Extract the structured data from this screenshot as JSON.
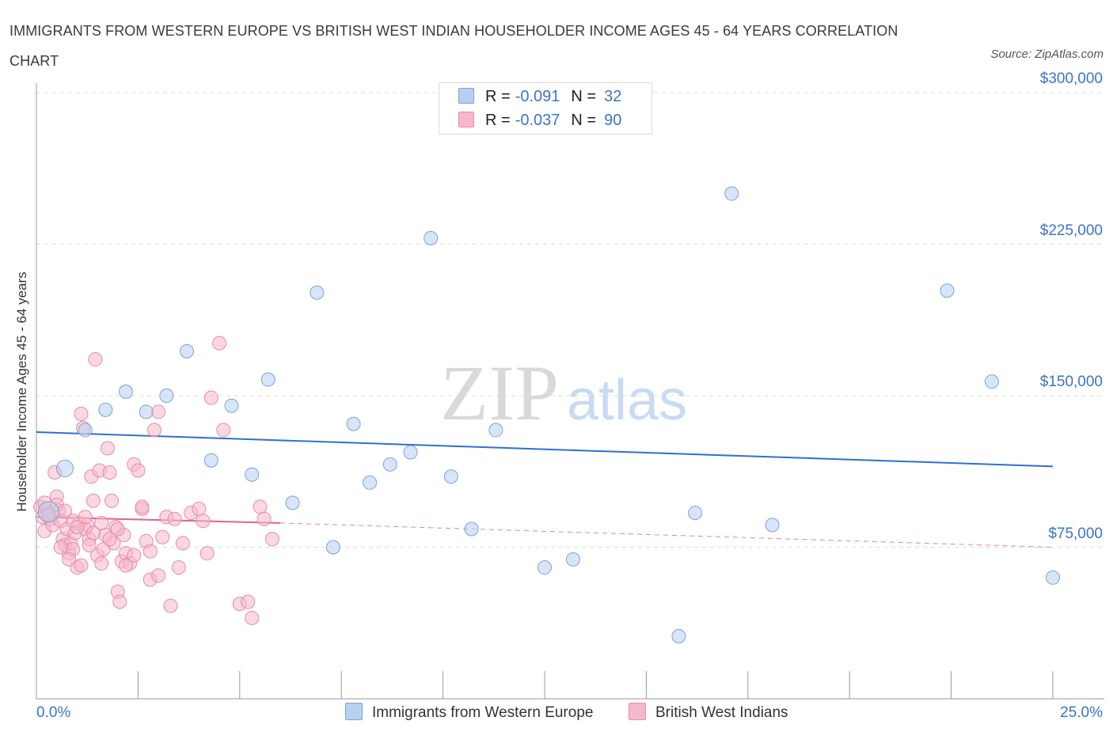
{
  "header": {
    "title": "IMMIGRANTS FROM WESTERN EUROPE VS BRITISH WEST INDIAN HOUSEHOLDER INCOME AGES 45 - 64 YEARS CORRELATION CHART",
    "source": "Source: ZipAtlas.com"
  },
  "legend": {
    "rows": [
      {
        "r_label": "R =",
        "r_value": "-0.091",
        "n_label": "N =",
        "n_value": "32"
      },
      {
        "r_label": "R =",
        "r_value": "-0.037",
        "n_label": "N =",
        "n_value": "90"
      }
    ]
  },
  "watermark": {
    "zip": "ZIP",
    "atlas": "atlas"
  },
  "colors": {
    "blue_fill": "#b8d0f0",
    "blue_edge": "#7aa3da",
    "blue_line": "#2f6fd0",
    "pink_fill": "#f6b8cb",
    "pink_edge": "#e98aa9",
    "pink_line": "#e0609a",
    "tick_text": "#3b74c8",
    "grid": "#dddddd"
  },
  "chart_data": {
    "type": "scatter",
    "title": "IMMIGRANTS FROM WESTERN EUROPE VS BRITISH WEST INDIAN HOUSEHOLDER INCOME AGES 45 - 64 YEARS CORRELATION CHART",
    "ylabel": "Householder Income Ages 45 - 64 years",
    "xlabel": "",
    "xlim": [
      0,
      25
    ],
    "ylim": [
      0,
      300000
    ],
    "x_tick_labels": [
      "0.0%",
      "25.0%"
    ],
    "y_ticks": [
      {
        "value": 75000,
        "label": "$75,000"
      },
      {
        "value": 150000,
        "label": "$150,000"
      },
      {
        "value": 225000,
        "label": "$225,000"
      },
      {
        "value": 300000,
        "label": "$300,000"
      }
    ],
    "grid": "horizontal dashed",
    "legend_position": "top-center and bottom",
    "series": [
      {
        "name": "Immigrants from Western Europe",
        "color": "blue",
        "r": -0.091,
        "n": 32,
        "trend": {
          "x": [
            0,
            25
          ],
          "y": [
            132000,
            115000
          ],
          "style": "solid"
        },
        "points": [
          [
            0.3,
            92500
          ],
          [
            0.7,
            114000
          ],
          [
            1.2,
            133000
          ],
          [
            1.7,
            143000
          ],
          [
            2.2,
            152000
          ],
          [
            2.7,
            142000
          ],
          [
            3.2,
            150000
          ],
          [
            3.7,
            172000
          ],
          [
            4.3,
            118000
          ],
          [
            4.8,
            145000
          ],
          [
            5.3,
            111000
          ],
          [
            5.7,
            158000
          ],
          [
            6.3,
            97000
          ],
          [
            6.9,
            201000
          ],
          [
            7.3,
            75000
          ],
          [
            7.8,
            136000
          ],
          [
            8.2,
            107000
          ],
          [
            8.7,
            116000
          ],
          [
            9.2,
            122000
          ],
          [
            9.7,
            228000
          ],
          [
            10.2,
            110000
          ],
          [
            10.7,
            84000
          ],
          [
            11.3,
            133000
          ],
          [
            12.5,
            65000
          ],
          [
            13.2,
            69000
          ],
          [
            15.8,
            31000
          ],
          [
            16.2,
            92000
          ],
          [
            17.1,
            250000
          ],
          [
            18.1,
            86000
          ],
          [
            22.4,
            202000
          ],
          [
            23.5,
            157000
          ],
          [
            25.0,
            60000
          ]
        ]
      },
      {
        "name": "British West Indians",
        "color": "pink",
        "r": -0.037,
        "n": 90,
        "trend": {
          "x": [
            0,
            6
          ],
          "y": [
            90000,
            87000
          ],
          "style": "solid",
          "extended_x": [
            6,
            25
          ],
          "extended_y": [
            87000,
            75000
          ],
          "extended_style": "dashed"
        },
        "points": [
          [
            0.1,
            95000
          ],
          [
            0.15,
            90000
          ],
          [
            0.2,
            83000
          ],
          [
            0.25,
            94000
          ],
          [
            0.3,
            92000
          ],
          [
            0.35,
            89000
          ],
          [
            0.4,
            86000
          ],
          [
            0.45,
            112000
          ],
          [
            0.5,
            100000
          ],
          [
            0.55,
            93000
          ],
          [
            0.6,
            88000
          ],
          [
            0.65,
            79000
          ],
          [
            0.7,
            76000
          ],
          [
            0.75,
            84000
          ],
          [
            0.8,
            72000
          ],
          [
            0.85,
            77000
          ],
          [
            0.9,
            74000
          ],
          [
            0.95,
            82000
          ],
          [
            1.0,
            65000
          ],
          [
            1.05,
            87000
          ],
          [
            1.1,
            141000
          ],
          [
            1.15,
            134000
          ],
          [
            1.2,
            84000
          ],
          [
            1.25,
            86000
          ],
          [
            1.3,
            79000
          ],
          [
            1.35,
            110000
          ],
          [
            1.4,
            98000
          ],
          [
            1.45,
            168000
          ],
          [
            1.5,
            71000
          ],
          [
            1.55,
            113000
          ],
          [
            1.6,
            67000
          ],
          [
            1.65,
            74000
          ],
          [
            1.7,
            81000
          ],
          [
            1.75,
            124000
          ],
          [
            1.8,
            112000
          ],
          [
            1.85,
            98000
          ],
          [
            1.9,
            77000
          ],
          [
            1.95,
            85000
          ],
          [
            2.0,
            53000
          ],
          [
            2.05,
            48000
          ],
          [
            2.1,
            68000
          ],
          [
            2.15,
            81000
          ],
          [
            2.2,
            72000
          ],
          [
            2.3,
            67000
          ],
          [
            2.4,
            116000
          ],
          [
            2.5,
            113000
          ],
          [
            2.6,
            94000
          ],
          [
            2.7,
            78000
          ],
          [
            2.8,
            59000
          ],
          [
            2.9,
            133000
          ],
          [
            3.0,
            142000
          ],
          [
            3.1,
            80000
          ],
          [
            3.2,
            90000
          ],
          [
            3.3,
            46000
          ],
          [
            3.4,
            89000
          ],
          [
            3.5,
            65000
          ],
          [
            3.6,
            77000
          ],
          [
            3.8,
            92000
          ],
          [
            4.0,
            94000
          ],
          [
            4.1,
            88000
          ],
          [
            4.2,
            72000
          ],
          [
            4.3,
            149000
          ],
          [
            4.5,
            176000
          ],
          [
            4.6,
            133000
          ],
          [
            5.0,
            47000
          ],
          [
            5.2,
            48000
          ],
          [
            5.3,
            40000
          ],
          [
            5.5,
            95000
          ],
          [
            5.6,
            89000
          ],
          [
            5.8,
            79000
          ],
          [
            0.2,
            97000
          ],
          [
            0.3,
            91000
          ],
          [
            0.5,
            96000
          ],
          [
            0.7,
            93000
          ],
          [
            0.9,
            88000
          ],
          [
            1.0,
            85000
          ],
          [
            1.2,
            90000
          ],
          [
            1.4,
            82000
          ],
          [
            1.6,
            87000
          ],
          [
            1.8,
            79000
          ],
          [
            2.0,
            84000
          ],
          [
            2.2,
            66000
          ],
          [
            2.4,
            71000
          ],
          [
            2.6,
            95000
          ],
          [
            2.8,
            73000
          ],
          [
            3.0,
            61000
          ],
          [
            1.1,
            66000
          ],
          [
            0.8,
            69000
          ],
          [
            0.6,
            75000
          ],
          [
            1.3,
            76000
          ]
        ]
      }
    ]
  },
  "bottom_legend": {
    "items": [
      {
        "label": "Immigrants from Western Europe"
      },
      {
        "label": "British West Indians"
      }
    ]
  }
}
